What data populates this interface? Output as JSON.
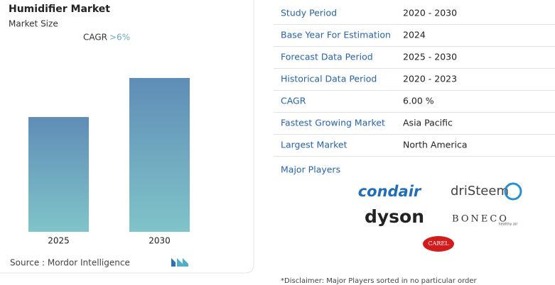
{
  "chart_data": {
    "type": "bar",
    "title": "Humidifier Market",
    "subtitle": "Market Size",
    "cagr_label": "CAGR",
    "cagr_value": ">6%",
    "categories": [
      "2025",
      "2030"
    ],
    "values": [
      1,
      1.34
    ],
    "source": "Source :  Mordor Intelligence"
  },
  "table": {
    "rows": [
      [
        "Study Period",
        "2020 - 2030"
      ],
      [
        "Base Year For Estimation",
        "2024"
      ],
      [
        "Forecast Data Period",
        "2025 - 2030"
      ],
      [
        "Historical Data Period",
        "2020 - 2023"
      ],
      [
        "CAGR",
        "6.00 %"
      ],
      [
        "Fastest Growing Market",
        "Asia Pacific"
      ],
      [
        "Largest Market",
        "North America"
      ]
    ]
  },
  "major_players": {
    "title": "Major Players",
    "logos": [
      "condair",
      "driSteem",
      "dyson",
      "BONECO",
      "healthy air",
      "CAREL"
    ]
  },
  "disclaimer": "*Disclaimer: Major Players sorted in no particular order"
}
